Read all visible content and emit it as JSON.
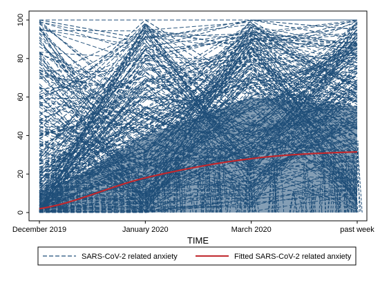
{
  "chart_data": {
    "type": "line",
    "title": "",
    "xlabel": "TIME",
    "ylabel": "",
    "categories": [
      "December 2019",
      "January 2020",
      "March 2020",
      "past week"
    ],
    "x_positions": [
      0,
      1,
      2,
      3
    ],
    "ylim": [
      0,
      100
    ],
    "yticks": [
      0,
      20,
      40,
      60,
      80,
      100
    ],
    "grid": false,
    "legend_placement": "bottom",
    "individual_series": {
      "name": "SARS-CoV-2 related anxiety",
      "style": "dashed",
      "color": "#1f4e79",
      "representative_trajectories": [
        [
          100,
          90,
          100,
          100
        ],
        [
          100,
          100,
          100,
          100
        ],
        [
          50,
          100,
          65,
          55
        ],
        [
          10,
          85,
          100,
          90
        ],
        [
          0,
          30,
          100,
          95
        ],
        [
          65,
          40,
          80,
          70
        ],
        [
          30,
          60,
          45,
          80
        ],
        [
          20,
          10,
          60,
          85
        ],
        [
          5,
          15,
          40,
          60
        ],
        [
          0,
          5,
          20,
          30
        ],
        [
          0,
          0,
          5,
          10
        ],
        [
          15,
          25,
          10,
          50
        ],
        [
          40,
          55,
          30,
          45
        ],
        [
          70,
          50,
          90,
          85
        ],
        [
          25,
          45,
          75,
          35
        ],
        [
          0,
          20,
          55,
          75
        ],
        [
          10,
          5,
          35,
          20
        ],
        [
          60,
          80,
          95,
          65
        ],
        [
          35,
          20,
          50,
          40
        ],
        [
          0,
          10,
          85,
          100
        ]
      ]
    },
    "fitted_series": {
      "name": "Fitted SARS-CoV-2 related anxiety",
      "color": "#c0282d",
      "x": [
        0,
        1,
        2,
        3
      ],
      "values": [
        2,
        18,
        28,
        31.5
      ]
    }
  },
  "legend": {
    "items": [
      {
        "label": "SARS-CoV-2 related anxiety",
        "style": "dashed",
        "color": "#1f4e79"
      },
      {
        "label": "Fitted SARS-CoV-2 related anxiety",
        "style": "solid",
        "color": "#c0282d"
      }
    ]
  }
}
